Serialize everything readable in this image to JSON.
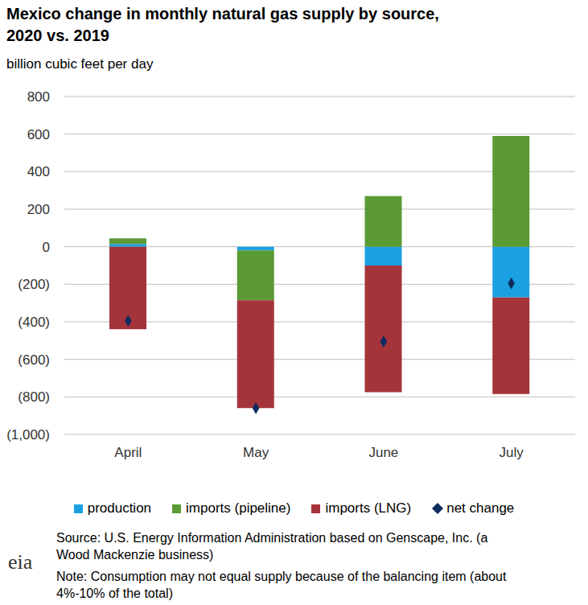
{
  "chart_data": {
    "type": "bar",
    "stacked": true,
    "grid": true,
    "title": "Mexico change in monthly natural gas supply by source, 2020 vs. 2019",
    "subtitle": "billion cubic feet per day",
    "categories": [
      "April",
      "May",
      "June",
      "July"
    ],
    "series": [
      {
        "name": "production",
        "color": "#1ba1e2",
        "values": [
          15,
          -20,
          -100,
          -270
        ]
      },
      {
        "name": "imports (pipeline)",
        "color": "#5b9a35",
        "values": [
          30,
          -265,
          270,
          590
        ]
      },
      {
        "name": "imports (LNG)",
        "color": "#a4343a",
        "values": [
          -440,
          -575,
          -675,
          -515
        ]
      },
      {
        "name": "net change",
        "type": "scatter",
        "marker": "diamond",
        "color": "#0d2a5e",
        "values": [
          -395,
          -860,
          -505,
          -195
        ]
      }
    ],
    "ylim": [
      -1000,
      800
    ],
    "yticks": [
      {
        "value": -1000,
        "label": "(1,000)"
      },
      {
        "value": -800,
        "label": "(800)"
      },
      {
        "value": -600,
        "label": "(600)"
      },
      {
        "value": -400,
        "label": "(400)"
      },
      {
        "value": -200,
        "label": "(200)"
      },
      0,
      200,
      400,
      600,
      800
    ],
    "legend": "bottom",
    "source": "Source: U.S. Energy Information Administration based on Genscape, Inc. (a Wood Mackenzie business)",
    "note": "Note: Consumption may not equal supply because of the balancing item (about 4%-10% of the total)",
    "logo": "eia"
  }
}
